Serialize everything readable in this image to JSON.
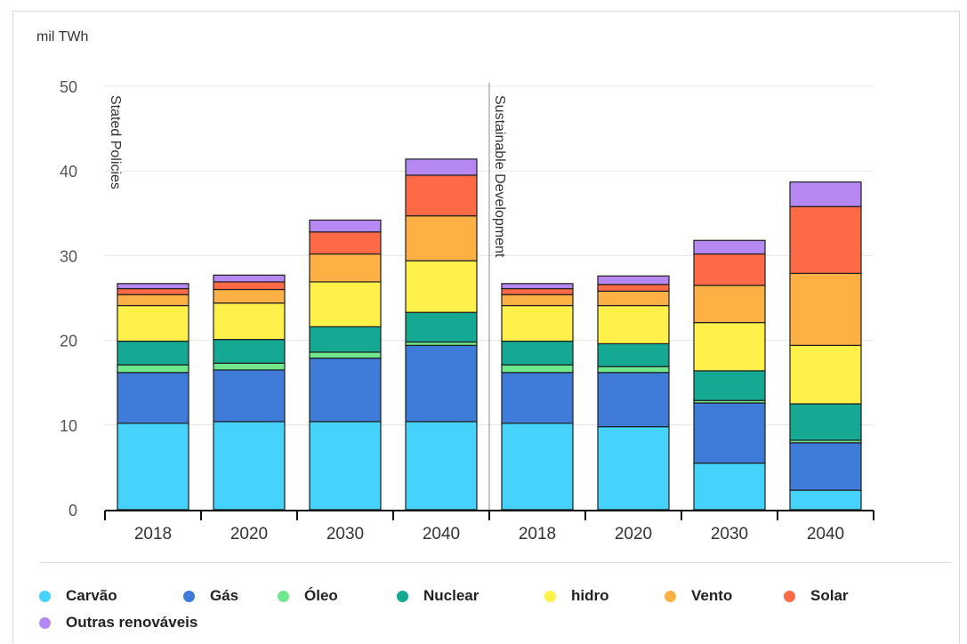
{
  "chart_data": {
    "type": "bar",
    "stacked": true,
    "ylabel": "mil TWh",
    "ylim": [
      0,
      50
    ],
    "yticks": [
      0,
      10,
      20,
      30,
      40,
      50
    ],
    "grid": true,
    "legend_position": "bottom",
    "groups": [
      {
        "label": "Stated Policies",
        "start_index": 0
      },
      {
        "label": "Sustainable Development",
        "start_index": 4
      }
    ],
    "categories": [
      "2018",
      "2020",
      "2030",
      "2040",
      "2018",
      "2020",
      "2030",
      "2040"
    ],
    "series": [
      {
        "name": "Carvão",
        "color": "#45d3fc",
        "values": [
          10.2,
          10.4,
          10.4,
          10.4,
          10.2,
          9.8,
          5.5,
          2.3
        ]
      },
      {
        "name": "Gás",
        "color": "#3f7bd9",
        "values": [
          6.0,
          6.1,
          7.5,
          9.0,
          6.0,
          6.4,
          7.1,
          5.6
        ]
      },
      {
        "name": "Óleo",
        "color": "#6ee88a",
        "values": [
          0.9,
          0.8,
          0.7,
          0.4,
          0.9,
          0.7,
          0.3,
          0.3
        ]
      },
      {
        "name": "Nuclear",
        "color": "#15a893",
        "values": [
          2.8,
          2.8,
          3.0,
          3.5,
          2.8,
          2.7,
          3.5,
          4.3
        ]
      },
      {
        "name": "hidro",
        "color": "#fff04a",
        "values": [
          4.2,
          4.3,
          5.3,
          6.1,
          4.2,
          4.5,
          5.7,
          6.9
        ]
      },
      {
        "name": "Vento",
        "color": "#fdb044",
        "values": [
          1.3,
          1.6,
          3.3,
          5.3,
          1.3,
          1.7,
          4.4,
          8.5
        ]
      },
      {
        "name": "Solar",
        "color": "#fd6a45",
        "values": [
          0.7,
          0.9,
          2.6,
          4.8,
          0.7,
          0.8,
          3.7,
          7.9
        ]
      },
      {
        "name": "Outras renováveis",
        "color": "#b689f2",
        "values": [
          0.6,
          0.8,
          1.4,
          1.9,
          0.6,
          1.0,
          1.6,
          2.9
        ]
      }
    ]
  }
}
